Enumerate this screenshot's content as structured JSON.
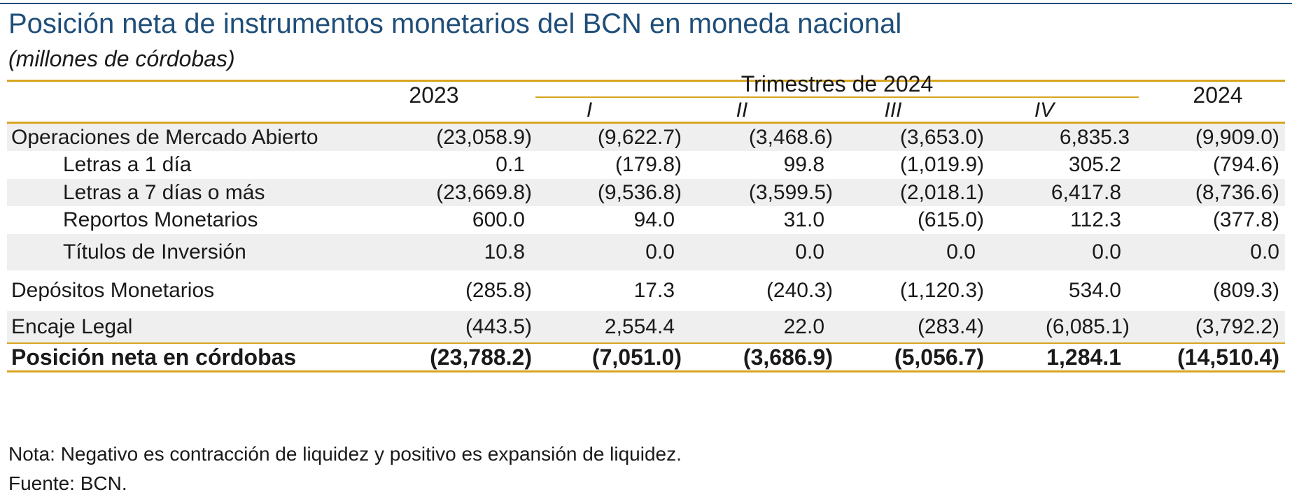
{
  "title": "Posición neta de instrumentos monetarios del BCN en moneda nacional",
  "subtitle": "(millones de córdobas)",
  "header": {
    "year_2023": "2023",
    "trimestres": "Trimestres de 2024",
    "quarters": [
      "I",
      "II",
      "III",
      "IV"
    ],
    "year_2024": "2024"
  },
  "rows": [
    {
      "label": "Operaciones de Mercado Abierto",
      "values": [
        "(23,058.9)",
        "(9,622.7)",
        "(3,468.6)",
        "(3,653.0)",
        "6,835.3",
        "(9,909.0)"
      ]
    },
    {
      "label": "Letras a 1 día",
      "values": [
        "0.1",
        "(179.8)",
        "99.8",
        "(1,019.9)",
        "305.2",
        "(794.6)"
      ]
    },
    {
      "label": "Letras a 7 días o más",
      "values": [
        "(23,669.8)",
        "(9,536.8)",
        "(3,599.5)",
        "(2,018.1)",
        "6,417.8",
        "(8,736.6)"
      ]
    },
    {
      "label": "Reportos Monetarios",
      "values": [
        "600.0",
        "94.0",
        "31.0",
        "(615.0)",
        "112.3",
        "(377.8)"
      ]
    },
    {
      "label": "Títulos de Inversión",
      "values": [
        "10.8",
        "0.0",
        "0.0",
        "0.0",
        "0.0",
        "0.0"
      ]
    },
    {
      "label": "Depósitos Monetarios",
      "values": [
        "(285.8)",
        "17.3",
        "(240.3)",
        "(1,120.3)",
        "534.0",
        "(809.3)"
      ]
    },
    {
      "label": "Encaje Legal",
      "values": [
        "(443.5)",
        "2,554.4",
        "22.0",
        "(283.4)",
        "(6,085.1)",
        "(3,792.2)"
      ]
    },
    {
      "label": "Posición neta en córdobas",
      "values": [
        "(23,788.2)",
        "(7,051.0)",
        "(3,686.9)",
        "(5,056.7)",
        "1,284.1",
        "(14,510.4)"
      ]
    }
  ],
  "notes": {
    "nota": "Nota: Negativo es contracción de liquidez y positivo es expansión de liquidez.",
    "fuente": "Fuente: BCN."
  }
}
